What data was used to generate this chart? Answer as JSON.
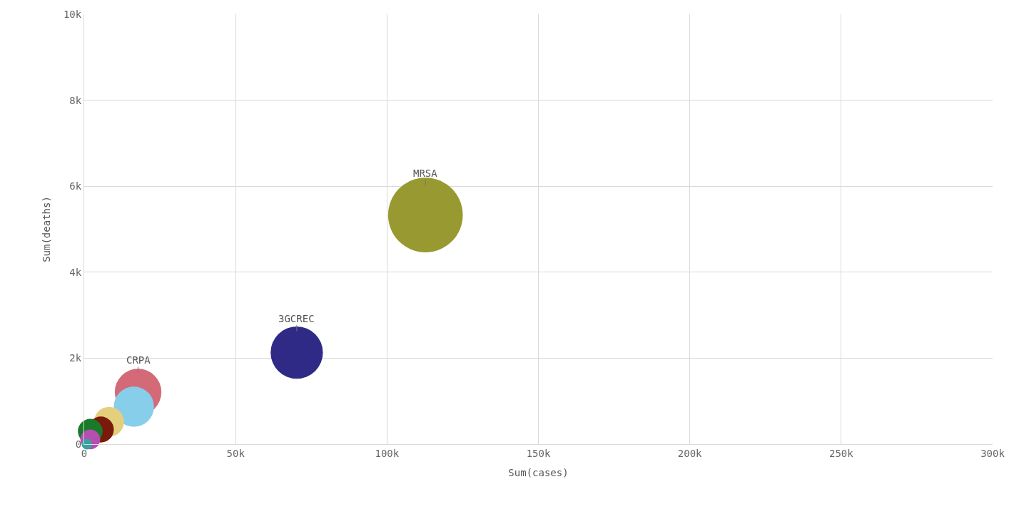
{
  "chart_data": {
    "type": "bubble",
    "xlabel": "Sum(cases)",
    "ylabel": "Sum(deaths)",
    "x": [
      112700,
      70200,
      17800,
      16400,
      8200,
      5500,
      2000,
      2000,
      900
    ],
    "values": [
      5330,
      2130,
      1210,
      870,
      520,
      340,
      300,
      110,
      0
    ],
    "sizes": [
      1,
      0.49,
      0.39,
      0.29,
      0.16,
      0.12,
      0.11,
      0.07,
      0.02
    ],
    "colors": [
      "#989a31",
      "#2e2a86",
      "#d46a78",
      "#87ceeb",
      "#e3cf7e",
      "#7a1a0a",
      "#1a7a2a",
      "#b44fb0",
      "#3aa0a0"
    ],
    "annotations": [
      {
        "text": "MRSA",
        "x": 112700,
        "y": 5330
      },
      {
        "text": "3GCREC",
        "x": 70200,
        "y": 2130
      },
      {
        "text": "CRPA",
        "x": 17800,
        "y": 1210
      }
    ],
    "xlim": [
      0,
      300000
    ],
    "xticks": [
      {
        "value": 0,
        "label": "0"
      },
      {
        "value": 50000,
        "label": "50k"
      },
      {
        "value": 100000,
        "label": "100k"
      },
      {
        "value": 150000,
        "label": "150k"
      },
      {
        "value": 200000,
        "label": "200k"
      },
      {
        "value": 250000,
        "label": "250k"
      },
      {
        "value": 300000,
        "label": "300k"
      }
    ],
    "ylim": [
      0,
      10000
    ],
    "yticks": [
      {
        "value": 0,
        "label": "0"
      },
      {
        "value": 2000,
        "label": "2k"
      },
      {
        "value": 4000,
        "label": "4k"
      },
      {
        "value": 6000,
        "label": "6k"
      },
      {
        "value": 8000,
        "label": "8k"
      },
      {
        "value": 10000,
        "label": "10k"
      }
    ],
    "grid": true
  }
}
